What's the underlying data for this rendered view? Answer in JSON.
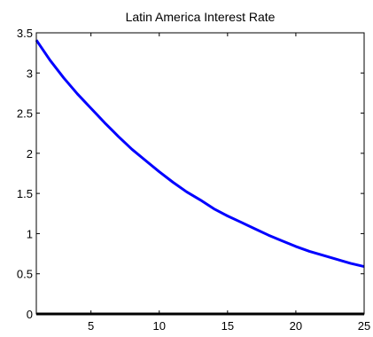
{
  "chart_data": {
    "type": "line",
    "title": "Latin America Interest Rate",
    "xlabel": "",
    "ylabel": "",
    "xlim": [
      1,
      25
    ],
    "ylim": [
      0,
      3.5
    ],
    "x_ticks": [
      5,
      10,
      15,
      20,
      25
    ],
    "y_ticks": [
      0,
      0.5,
      1,
      1.5,
      2,
      2.5,
      3,
      3.5
    ],
    "y_tick_labels": [
      "0",
      "0.5",
      "1",
      "1.5",
      "2",
      "2.5",
      "3",
      "3.5"
    ],
    "grid": false,
    "series": [
      {
        "color": "#0000ff",
        "x": [
          1,
          2,
          3,
          4,
          5,
          6,
          7,
          8,
          9,
          10,
          11,
          12,
          13,
          14,
          15,
          16,
          17,
          18,
          19,
          20,
          21,
          22,
          23,
          24,
          25
        ],
        "values": [
          3.41,
          3.16,
          2.94,
          2.74,
          2.56,
          2.38,
          2.21,
          2.05,
          1.91,
          1.77,
          1.64,
          1.52,
          1.42,
          1.31,
          1.22,
          1.14,
          1.06,
          0.98,
          0.91,
          0.84,
          0.78,
          0.73,
          0.68,
          0.63,
          0.59
        ]
      },
      {
        "color": "#000000",
        "x": [
          1,
          25
        ],
        "values": [
          0,
          0
        ]
      }
    ]
  }
}
